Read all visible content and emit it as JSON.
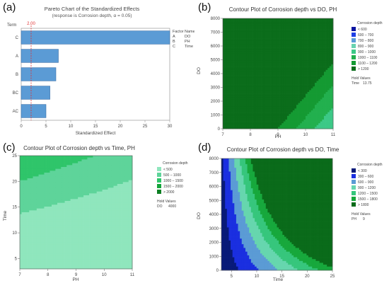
{
  "panels": [
    {
      "label": "(a)"
    },
    {
      "label": "(b)"
    },
    {
      "label": "(c)"
    },
    {
      "label": "(d)"
    }
  ],
  "chart_data": [
    {
      "type": "bar",
      "orientation": "horizontal",
      "title": "Pareto Chart of the Standardized Effects",
      "subtitle": "(response is Corrosion depth, α = 0.05)",
      "term_label": "Term",
      "xlabel": "Standardized Effect",
      "categories": [
        "C",
        "A",
        "B",
        "BC",
        "AC"
      ],
      "values": [
        30,
        7.5,
        7.0,
        5.8,
        5.0
      ],
      "xlim": [
        0,
        30
      ],
      "xticks": [
        0,
        5,
        10,
        15,
        20,
        25,
        30
      ],
      "reference_line": {
        "value": 2.0,
        "label": "2.00",
        "color": "#e03030"
      },
      "bar_color": "#5b9bd5",
      "factor_table": {
        "headers": [
          "Factor",
          "Name"
        ],
        "rows": [
          [
            "A",
            "DO"
          ],
          [
            "B",
            "PH"
          ],
          [
            "C",
            "Time"
          ]
        ]
      }
    },
    {
      "type": "contour",
      "title": "Contour Plot of Corrosion depth vs DO, PH",
      "xlabel": "PH",
      "ylabel": "DO",
      "xlim": [
        7,
        11
      ],
      "ylim": [
        0,
        8000
      ],
      "xticks": [
        7,
        8,
        9,
        10,
        11
      ],
      "yticks": [
        0,
        1000,
        2000,
        3000,
        4000,
        5000,
        6000,
        7000,
        8000
      ],
      "model": {
        "a": 900,
        "b": -150,
        "c": 0.0625
      },
      "levels": [
        600,
        700,
        800,
        900,
        1000,
        1100,
        1200
      ],
      "legend_title": "Corrosion depth",
      "legend": [
        {
          "label": "<  600",
          "color": "#0a14a0"
        },
        {
          "label": "600  –   700",
          "color": "#1e3fe6"
        },
        {
          "label": "700  –   800",
          "color": "#5a9bd8"
        },
        {
          "label": "800  –   900",
          "color": "#69d3b0"
        },
        {
          "label": "900  –  1000",
          "color": "#3cc987"
        },
        {
          "label": "1000  –  1100",
          "color": "#22b04e"
        },
        {
          "label": "1100  –  1200",
          "color": "#149a32"
        },
        {
          "label": ">  1200",
          "color": "#0b6d1b"
        }
      ],
      "hold_title": "Hold Values",
      "hold": [
        {
          "name": "Time",
          "value": "13.75"
        }
      ]
    },
    {
      "type": "contour",
      "title": "Contour Plot of Corrosion depth vs Time, PH",
      "xlabel": "PH",
      "ylabel": "Time",
      "xlim": [
        7,
        11
      ],
      "ylim": [
        3,
        25
      ],
      "xticks": [
        7,
        8,
        9,
        10,
        11
      ],
      "yticks": [
        5,
        10,
        15,
        20,
        25
      ],
      "levels": [
        500,
        1000,
        1500,
        2000
      ],
      "legend_title": "Corrosion depth",
      "legend": [
        {
          "label": "<   500",
          "color": "#8fe6bd"
        },
        {
          "label": "500  –  1000",
          "color": "#5ed49a"
        },
        {
          "label": "1000  –  1500",
          "color": "#2fc56a"
        },
        {
          "label": "1500  –  2000",
          "color": "#14a53a"
        },
        {
          "label": ">  2000",
          "color": "#0d7f23"
        }
      ],
      "hold_title": "Hold Values",
      "hold": [
        {
          "name": "DO",
          "value": "4000"
        }
      ]
    },
    {
      "type": "contour",
      "title": "Contour Plot of Corrosion depth vs DO, Time",
      "xlabel": "Time",
      "ylabel": "DO",
      "xlim": [
        3,
        25
      ],
      "ylim": [
        0,
        8000
      ],
      "xticks": [
        5,
        10,
        15,
        20,
        25
      ],
      "yticks": [
        0,
        1000,
        2000,
        3000,
        4000,
        5000,
        6000,
        7000,
        8000
      ],
      "levels": [
        300,
        600,
        900,
        1200,
        1500,
        1800
      ],
      "legend_title": "Corrosion depth",
      "legend": [
        {
          "label": "<   300",
          "color": "#081a78"
        },
        {
          "label": "300  –   600",
          "color": "#1a2fe0"
        },
        {
          "label": "600  –   900",
          "color": "#5b9bd5"
        },
        {
          "label": "900  –  1200",
          "color": "#66d6ae"
        },
        {
          "label": "1200  –  1500",
          "color": "#36c67c"
        },
        {
          "label": "1500  –  1800",
          "color": "#17a83c"
        },
        {
          "label": ">  1800",
          "color": "#0a6b1a"
        }
      ],
      "hold_title": "Hold Values",
      "hold": [
        {
          "name": "PH",
          "value": "9"
        }
      ]
    }
  ]
}
